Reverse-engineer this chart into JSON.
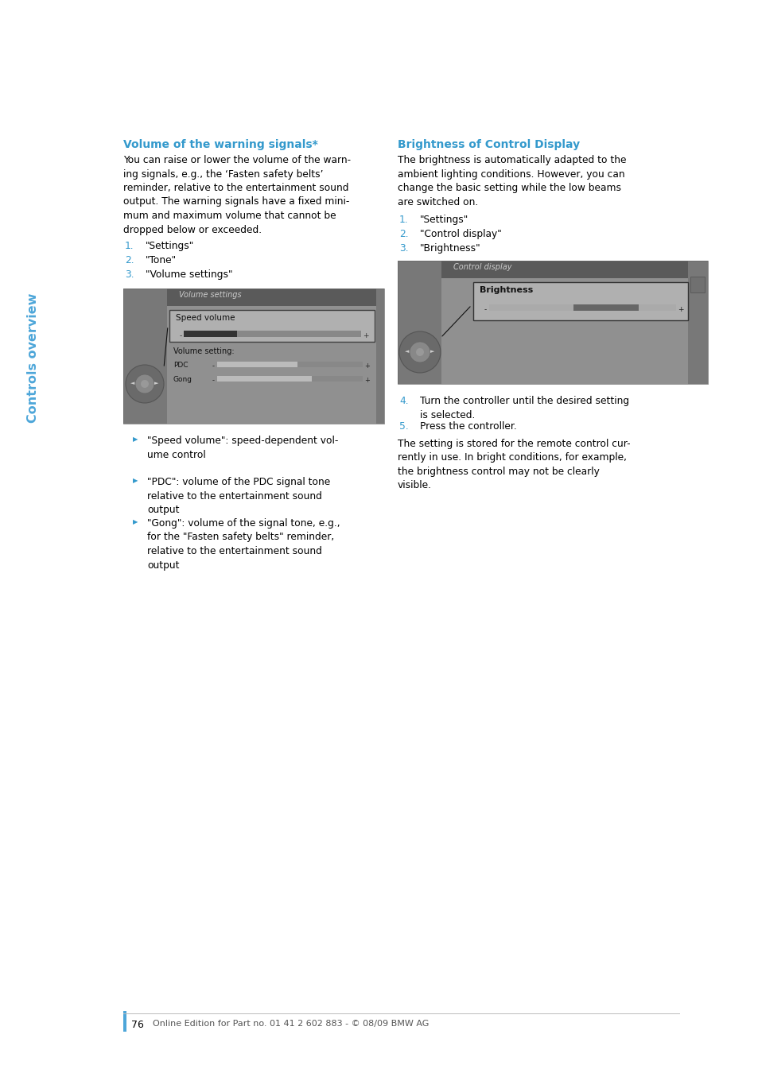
{
  "page_bg": "#ffffff",
  "sidebar_color": "#4da6d9",
  "sidebar_text": "Controls overview",
  "left_title": "Volume of the warning signals*",
  "left_title_color": "#3399cc",
  "left_body": "You can raise or lower the volume of the warn-\ning signals, e.g., the ‘Fasten safety belts’\nreminder, relative to the entertainment sound\noutput. The warning signals have a fixed mini-\nmum and maximum volume that cannot be\ndropped below or exceeded.",
  "left_steps": [
    "\"Settings\"",
    "\"Tone\"",
    "\"Volume settings\""
  ],
  "left_bullets": [
    "\"Speed volume\": speed-dependent vol-\nume control",
    "\"PDC\": volume of the PDC signal tone\nrelative to the entertainment sound\noutput",
    "\"Gong\": volume of the signal tone, e.g.,\nfor the \"Fasten safety belts\" reminder,\nrelative to the entertainment sound\noutput"
  ],
  "right_title": "Brightness of Control Display",
  "right_title_color": "#3399cc",
  "right_body": "The brightness is automatically adapted to the\nambient lighting conditions. However, you can\nchange the basic setting while the low beams\nare switched on.",
  "right_steps": [
    "\"Settings\"",
    "\"Control display\"",
    "\"Brightness\""
  ],
  "right_step4": "Turn the controller until the desired setting\nis selected.",
  "right_step5": "Press the controller.",
  "right_body2": "The setting is stored for the remote control cur-\nrently in use. In bright conditions, for example,\nthe brightness control may not be clearly\nvisible.",
  "step_color": "#3399cc",
  "body_color": "#000000",
  "text_fontsize": 8.8,
  "title_fontsize": 10.0,
  "page_number": "76",
  "footer_text": "Online Edition for Part no. 01 41 2 602 883 - © 08/09 BMW AG",
  "footer_color": "#555555",
  "footer_bar_color": "#4da6d9"
}
